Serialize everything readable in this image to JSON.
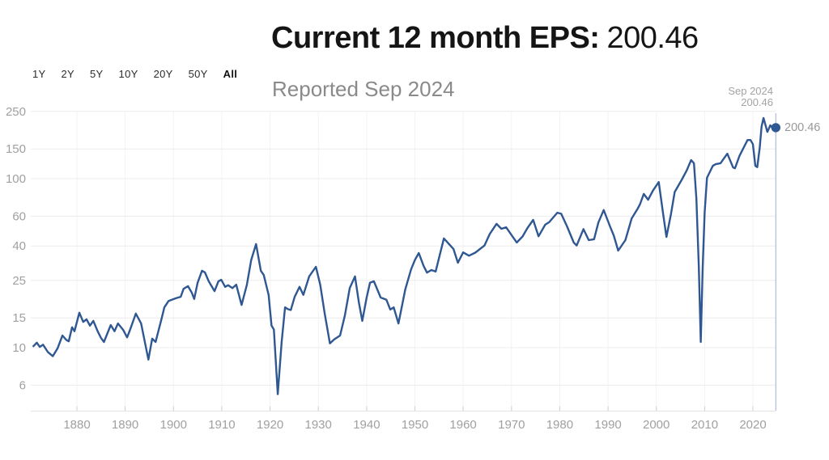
{
  "header": {
    "title_label": "Current 12 month EPS:",
    "title_value": "200.46",
    "subtitle": "Reported Sep 2024"
  },
  "range_selector": {
    "options": [
      "1Y",
      "2Y",
      "5Y",
      "10Y",
      "20Y",
      "50Y",
      "All"
    ],
    "selected": "All"
  },
  "tooltip": {
    "date": "Sep 2024",
    "value": "200.46"
  },
  "marker": {
    "label": "200.46"
  },
  "colors": {
    "line": "#2F5792",
    "marker": "#2F5792",
    "crosshair": "#AFBCD6",
    "grid": "#ECECEC",
    "grid_vertical": "#F3F3F3",
    "axis_line": "#E2E2E2",
    "tick": "#CFCFCF",
    "axis_label": "#A0A0A0",
    "title_color": "#151515",
    "subtitle_color": "#8A8A8A"
  },
  "chart_data": {
    "type": "line",
    "title": "Current 12 month EPS: 200.46",
    "subtitle": "Reported Sep 2024",
    "xlabel": "",
    "ylabel": "",
    "grid": true,
    "legend": "none",
    "x_axis": {
      "ticks": [
        1880,
        1890,
        1900,
        1910,
        1920,
        1930,
        1940,
        1950,
        1960,
        1970,
        1980,
        1990,
        2000,
        2010,
        2020
      ],
      "range": [
        1871,
        2024.75
      ]
    },
    "y_axis": {
      "scale": "log",
      "ticks": [
        6,
        10,
        15,
        25,
        40,
        60,
        100,
        150,
        250
      ],
      "range": [
        4.2,
        290
      ]
    },
    "annotation": {
      "label_date": "Sep 2024",
      "label_value": "200.46",
      "marker_year": 2024.75,
      "marker_value": 200.46
    },
    "series": [
      {
        "name": "12 month EPS",
        "color": "#2F5792",
        "points": [
          [
            1871.0,
            10.2
          ],
          [
            1871.7,
            10.7
          ],
          [
            1872.3,
            10.1
          ],
          [
            1873.0,
            10.4
          ],
          [
            1874.0,
            9.4
          ],
          [
            1875.0,
            8.9
          ],
          [
            1876.0,
            9.9
          ],
          [
            1877.0,
            11.8
          ],
          [
            1877.8,
            11.1
          ],
          [
            1878.3,
            10.9
          ],
          [
            1879.0,
            13.2
          ],
          [
            1879.5,
            12.5
          ],
          [
            1880.5,
            16.1
          ],
          [
            1881.3,
            14.2
          ],
          [
            1882.0,
            14.7
          ],
          [
            1882.7,
            13.5
          ],
          [
            1883.4,
            14.4
          ],
          [
            1884.3,
            12.5
          ],
          [
            1885.0,
            11.4
          ],
          [
            1885.6,
            10.8
          ],
          [
            1887.0,
            13.6
          ],
          [
            1887.8,
            12.5
          ],
          [
            1888.5,
            13.9
          ],
          [
            1889.6,
            12.7
          ],
          [
            1890.4,
            11.5
          ],
          [
            1890.9,
            12.5
          ],
          [
            1892.2,
            15.9
          ],
          [
            1893.3,
            13.9
          ],
          [
            1894.8,
            8.5
          ],
          [
            1895.6,
            11.3
          ],
          [
            1896.3,
            10.8
          ],
          [
            1897.6,
            15.1
          ],
          [
            1898.1,
            17.3
          ],
          [
            1899.0,
            18.9
          ],
          [
            1900.5,
            19.6
          ],
          [
            1901.5,
            20.0
          ],
          [
            1902.1,
            22.3
          ],
          [
            1903.0,
            23.1
          ],
          [
            1903.8,
            21.1
          ],
          [
            1904.3,
            19.4
          ],
          [
            1905.0,
            24.2
          ],
          [
            1905.9,
            28.5
          ],
          [
            1906.5,
            27.9
          ],
          [
            1907.3,
            24.7
          ],
          [
            1908.5,
            21.6
          ],
          [
            1909.3,
            24.7
          ],
          [
            1909.9,
            25.2
          ],
          [
            1910.7,
            22.9
          ],
          [
            1911.3,
            23.4
          ],
          [
            1912.2,
            22.5
          ],
          [
            1913.0,
            23.6
          ],
          [
            1914.1,
            17.9
          ],
          [
            1915.2,
            23.5
          ],
          [
            1916.1,
            33.0
          ],
          [
            1917.1,
            41.0
          ],
          [
            1918.1,
            28.5
          ],
          [
            1918.7,
            26.9
          ],
          [
            1919.7,
            20.5
          ],
          [
            1920.3,
            13.5
          ],
          [
            1920.8,
            12.8
          ],
          [
            1921.6,
            5.3
          ],
          [
            1922.4,
            10.8
          ],
          [
            1923.1,
            17.3
          ],
          [
            1923.7,
            16.9
          ],
          [
            1924.3,
            16.7
          ],
          [
            1925.1,
            20.0
          ],
          [
            1926.1,
            22.9
          ],
          [
            1926.9,
            20.5
          ],
          [
            1928.1,
            26.4
          ],
          [
            1929.5,
            30.1
          ],
          [
            1930.4,
            23.5
          ],
          [
            1931.3,
            16.0
          ],
          [
            1932.4,
            10.6
          ],
          [
            1933.3,
            11.2
          ],
          [
            1934.5,
            11.8
          ],
          [
            1935.5,
            15.5
          ],
          [
            1936.5,
            22.5
          ],
          [
            1937.6,
            26.4
          ],
          [
            1938.4,
            18.5
          ],
          [
            1939.1,
            14.4
          ],
          [
            1940.0,
            19.8
          ],
          [
            1940.7,
            24.2
          ],
          [
            1941.5,
            24.7
          ],
          [
            1942.9,
            19.8
          ],
          [
            1944.1,
            19.2
          ],
          [
            1944.9,
            16.8
          ],
          [
            1945.6,
            17.3
          ],
          [
            1946.6,
            13.9
          ],
          [
            1948.0,
            22.1
          ],
          [
            1949.2,
            29.0
          ],
          [
            1950.0,
            33.0
          ],
          [
            1950.8,
            36.3
          ],
          [
            1951.8,
            30.5
          ],
          [
            1952.5,
            27.8
          ],
          [
            1953.4,
            28.8
          ],
          [
            1954.3,
            28.2
          ],
          [
            1956.0,
            44.3
          ],
          [
            1958.0,
            38.3
          ],
          [
            1958.9,
            31.8
          ],
          [
            1960.0,
            36.6
          ],
          [
            1961.2,
            35.0
          ],
          [
            1962.5,
            36.5
          ],
          [
            1964.4,
            40.2
          ],
          [
            1965.5,
            47.0
          ],
          [
            1966.9,
            54.0
          ],
          [
            1967.9,
            50.5
          ],
          [
            1968.9,
            51.5
          ],
          [
            1971.1,
            41.9
          ],
          [
            1972.3,
            45.5
          ],
          [
            1973.3,
            51.0
          ],
          [
            1974.5,
            57.0
          ],
          [
            1975.6,
            45.6
          ],
          [
            1977.0,
            53.4
          ],
          [
            1977.8,
            55.2
          ],
          [
            1979.5,
            62.9
          ],
          [
            1980.3,
            62.0
          ],
          [
            1981.5,
            52.2
          ],
          [
            1982.9,
            41.9
          ],
          [
            1983.5,
            40.2
          ],
          [
            1984.9,
            50.3
          ],
          [
            1986.0,
            43.3
          ],
          [
            1987.1,
            43.8
          ],
          [
            1988.0,
            55.0
          ],
          [
            1989.1,
            65.2
          ],
          [
            1990.4,
            52.2
          ],
          [
            1991.2,
            46.0
          ],
          [
            1992.1,
            37.5
          ],
          [
            1993.6,
            43.3
          ],
          [
            1994.9,
            58.2
          ],
          [
            1996.0,
            65.5
          ],
          [
            1996.6,
            70.3
          ],
          [
            1997.4,
            81.2
          ],
          [
            1998.3,
            75.0
          ],
          [
            1999.3,
            85.0
          ],
          [
            2000.5,
            95.5
          ],
          [
            2001.4,
            62.0
          ],
          [
            2002.1,
            45.2
          ],
          [
            2003.0,
            61.0
          ],
          [
            2003.8,
            83.4
          ],
          [
            2005.3,
            98.9
          ],
          [
            2006.3,
            112.0
          ],
          [
            2007.2,
            128.9
          ],
          [
            2007.8,
            123.4
          ],
          [
            2008.3,
            76.0
          ],
          [
            2008.8,
            30.0
          ],
          [
            2009.2,
            10.8
          ],
          [
            2009.6,
            30.0
          ],
          [
            2010.0,
            63.0
          ],
          [
            2010.5,
            101.2
          ],
          [
            2011.7,
            119.2
          ],
          [
            2012.3,
            121.8
          ],
          [
            2013.3,
            123.4
          ],
          [
            2014.7,
            140.5
          ],
          [
            2015.9,
            116.6
          ],
          [
            2016.3,
            115.3
          ],
          [
            2017.2,
            136.0
          ],
          [
            2018.0,
            151.0
          ],
          [
            2018.9,
            169.3
          ],
          [
            2019.5,
            169.3
          ],
          [
            2020.0,
            160.0
          ],
          [
            2020.5,
            119.2
          ],
          [
            2020.9,
            117.0
          ],
          [
            2021.4,
            152.0
          ],
          [
            2021.8,
            203.0
          ],
          [
            2022.2,
            228.6
          ],
          [
            2023.0,
            189.0
          ],
          [
            2023.6,
            207.0
          ],
          [
            2024.2,
            197.0
          ],
          [
            2024.75,
            200.46
          ]
        ]
      }
    ]
  }
}
